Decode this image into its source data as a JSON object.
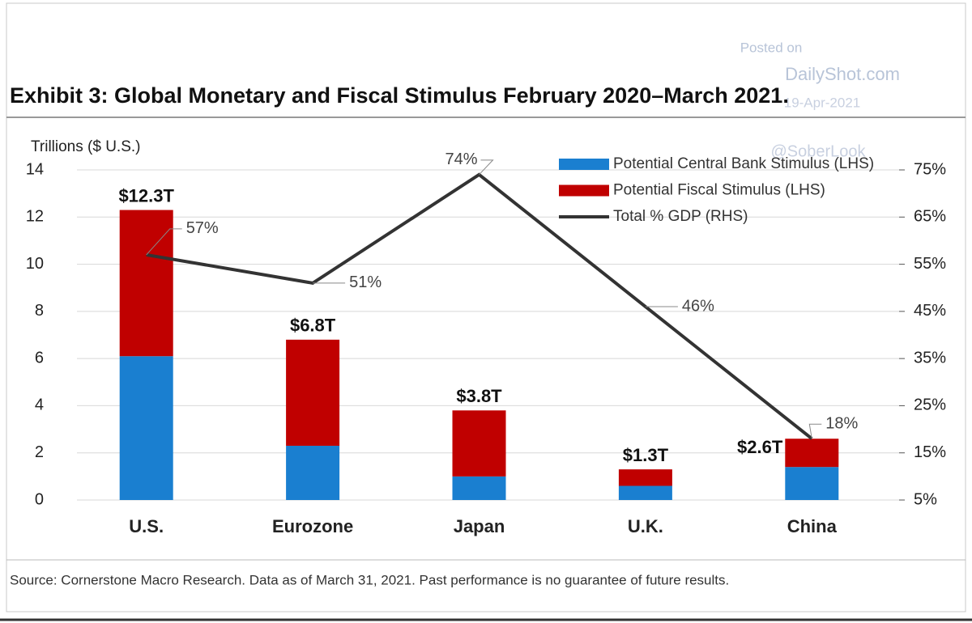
{
  "chart_data": {
    "type": "bar",
    "stacked": true,
    "title": "Exhibit 3: Global Monetary and Fiscal Stimulus February 2020–March 2021.",
    "y_label": "Trillions ($ U.S.)",
    "source": "Source: Cornerstone Macro Research. Data as of March 31, 2021. Past performance is no guarantee of future results.",
    "watermark": [
      "Posted on",
      "DailyShot.com",
      "19-Apr-2021",
      "@SoberLook"
    ],
    "categories": [
      "U.S.",
      "Eurozone",
      "Japan",
      "U.K.",
      "China"
    ],
    "series": [
      {
        "name": "Potential Central Bank Stimulus (LHS)",
        "color": "#1a7fd0",
        "values": [
          6.1,
          2.3,
          1.0,
          0.6,
          1.4
        ]
      },
      {
        "name": "Potential Fiscal Stimulus (LHS)",
        "color": "#c00000",
        "values": [
          6.2,
          4.5,
          2.8,
          0.7,
          1.2
        ]
      },
      {
        "name": "Total % GDP (RHS)",
        "type": "line",
        "axis": "y2",
        "color": "#333333",
        "values": [
          57,
          51,
          74,
          46,
          18
        ],
        "value_labels": [
          "57%",
          "51%",
          "74%",
          "46%",
          "18%"
        ]
      }
    ],
    "totals": {
      "values": [
        12.3,
        6.8,
        3.8,
        1.3,
        2.6
      ],
      "value_labels": [
        "$12.3T",
        "$6.8T",
        "$3.8T",
        "$1.3T",
        "$2.6T"
      ]
    },
    "ylim": [
      0,
      14
    ],
    "yticks": [
      0,
      2,
      4,
      6,
      8,
      10,
      12,
      14
    ],
    "y2lim": [
      5,
      75
    ],
    "y2ticks": [
      {
        "value": 5,
        "label": "5%"
      },
      {
        "value": 15,
        "label": "15%"
      },
      {
        "value": 25,
        "label": "25%"
      },
      {
        "value": 35,
        "label": "35%"
      },
      {
        "value": 45,
        "label": "45%"
      },
      {
        "value": 55,
        "label": "55%"
      },
      {
        "value": 65,
        "label": "65%"
      },
      {
        "value": 75,
        "label": "75%"
      }
    ],
    "grid": true,
    "legend": "top-right"
  }
}
